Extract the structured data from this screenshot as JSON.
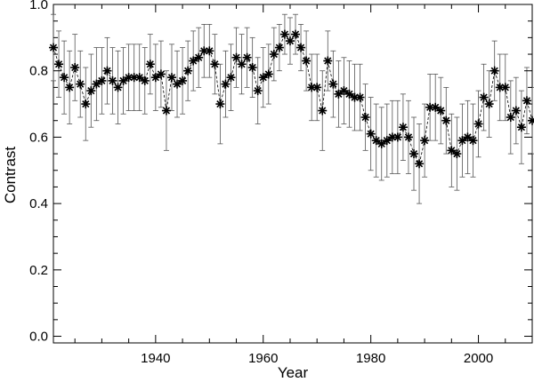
{
  "chart_data": {
    "type": "scatter",
    "title": "",
    "xlabel": "Year",
    "ylabel": "Contrast",
    "xlim": [
      1921,
      2010
    ],
    "ylim": [
      -0.02,
      1.0
    ],
    "xticks": [
      1940,
      1960,
      1980,
      2000
    ],
    "xtick_labels": [
      "1940",
      "1960",
      "1980",
      "2000"
    ],
    "yticks": [
      0.0,
      0.2,
      0.4,
      0.6,
      0.8,
      1.0
    ],
    "ytick_labels": [
      "0.0",
      "0.2",
      "0.4",
      "0.6",
      "0.8",
      "1.0"
    ],
    "grid": false,
    "marker": "asterisk",
    "connected_line": "dashed",
    "error_bars": "vertical",
    "series": [
      {
        "x": [
          1921,
          1922,
          1923,
          1924,
          1925,
          1926,
          1927,
          1928,
          1929,
          1930,
          1931,
          1932,
          1933,
          1934,
          1935,
          1936,
          1937,
          1938,
          1939,
          1940,
          1941,
          1942,
          1943,
          1944,
          1945,
          1946,
          1947,
          1948,
          1949,
          1950,
          1951,
          1952,
          1953,
          1954,
          1955,
          1956,
          1957,
          1958,
          1959,
          1960,
          1961,
          1962,
          1963,
          1964,
          1965,
          1966,
          1967,
          1968,
          1969,
          1970,
          1971,
          1972,
          1973,
          1974,
          1975,
          1976,
          1977,
          1978,
          1979,
          1980,
          1981,
          1982,
          1983,
          1984,
          1985,
          1986,
          1987,
          1988,
          1989,
          1990,
          1991,
          1992,
          1993,
          1994,
          1995,
          1996,
          1997,
          1998,
          1999,
          2000,
          2001,
          2002,
          2003,
          2004,
          2005,
          2006,
          2007,
          2008,
          2009,
          2010
        ],
        "y": [
          0.87,
          0.82,
          0.78,
          0.75,
          0.81,
          0.76,
          0.7,
          0.74,
          0.76,
          0.77,
          0.8,
          0.77,
          0.75,
          0.77,
          0.78,
          0.78,
          0.78,
          0.77,
          0.82,
          0.78,
          0.79,
          0.68,
          0.78,
          0.76,
          0.77,
          0.8,
          0.83,
          0.84,
          0.86,
          0.86,
          0.82,
          0.7,
          0.76,
          0.78,
          0.84,
          0.82,
          0.84,
          0.81,
          0.74,
          0.78,
          0.79,
          0.85,
          0.87,
          0.91,
          0.89,
          0.91,
          0.87,
          0.83,
          0.75,
          0.75,
          0.68,
          0.83,
          0.76,
          0.73,
          0.74,
          0.73,
          0.72,
          0.72,
          0.66,
          0.61,
          0.59,
          0.58,
          0.59,
          0.6,
          0.6,
          0.63,
          0.6,
          0.55,
          0.52,
          0.59,
          0.69,
          0.69,
          0.68,
          0.65,
          0.56,
          0.55,
          0.59,
          0.6,
          0.59,
          0.64,
          0.72,
          0.7,
          0.8,
          0.75,
          0.75,
          0.66,
          0.68,
          0.63,
          0.71,
          0.65
        ],
        "err": [
          0.1,
          0.1,
          0.11,
          0.11,
          0.1,
          0.1,
          0.11,
          0.11,
          0.11,
          0.1,
          0.1,
          0.1,
          0.11,
          0.1,
          0.1,
          0.1,
          0.1,
          0.1,
          0.09,
          0.1,
          0.1,
          0.12,
          0.1,
          0.1,
          0.1,
          0.09,
          0.09,
          0.09,
          0.08,
          0.08,
          0.09,
          0.12,
          0.1,
          0.1,
          0.09,
          0.09,
          0.09,
          0.09,
          0.1,
          0.09,
          0.09,
          0.08,
          0.07,
          0.06,
          0.07,
          0.06,
          0.07,
          0.09,
          0.1,
          0.1,
          0.12,
          0.09,
          0.1,
          0.1,
          0.1,
          0.1,
          0.1,
          0.1,
          0.1,
          0.11,
          0.11,
          0.11,
          0.11,
          0.11,
          0.11,
          0.1,
          0.11,
          0.11,
          0.12,
          0.11,
          0.1,
          0.1,
          0.1,
          0.1,
          0.11,
          0.11,
          0.11,
          0.11,
          0.11,
          0.1,
          0.1,
          0.1,
          0.09,
          0.1,
          0.1,
          0.11,
          0.1,
          0.11,
          0.1,
          0.1
        ]
      }
    ]
  }
}
